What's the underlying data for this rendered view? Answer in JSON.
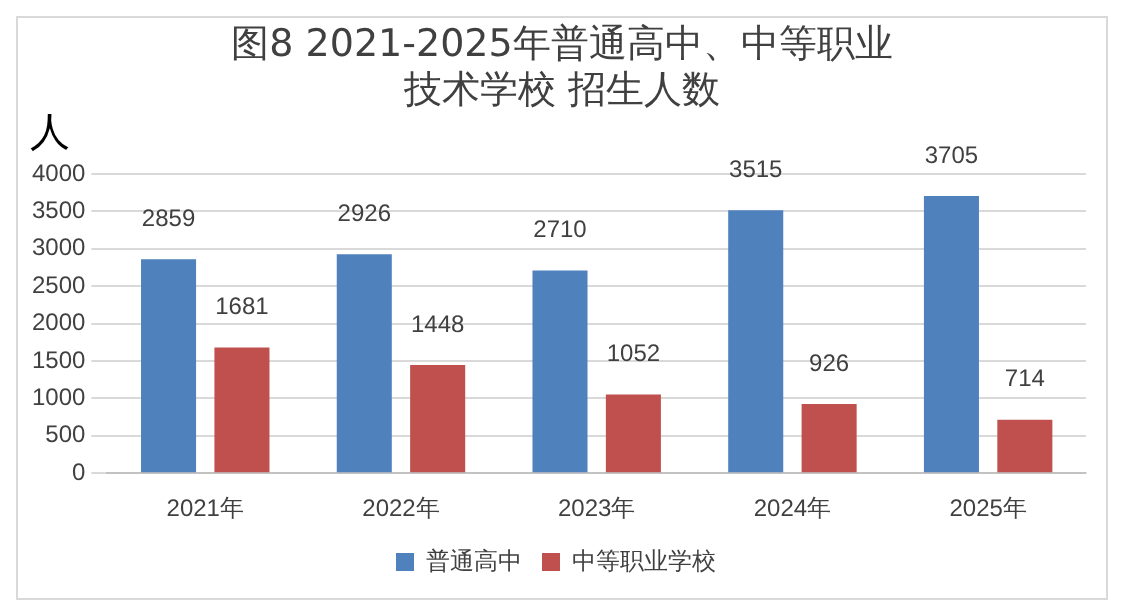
{
  "chart_data": {
    "type": "bar",
    "title": "图8  2021-2025年普通高中、中等职业技术学校  招生人数",
    "ylabel": "人",
    "categories": [
      "2021年",
      "2022年",
      "2023年",
      "2024年",
      "2025年"
    ],
    "series": [
      {
        "name": "普通高中",
        "color": "#4f81bd",
        "values": [
          2859,
          2926,
          2710,
          3515,
          3705
        ]
      },
      {
        "name": "中等职业学校",
        "color": "#c0504d",
        "values": [
          1681,
          1448,
          1052,
          926,
          714
        ]
      }
    ],
    "ylim": [
      0,
      4000
    ],
    "yticks": [
      0,
      500,
      1000,
      1500,
      2000,
      2500,
      3000,
      3500,
      4000
    ],
    "grid": "y",
    "legend": "bottom",
    "data_labels": true
  }
}
